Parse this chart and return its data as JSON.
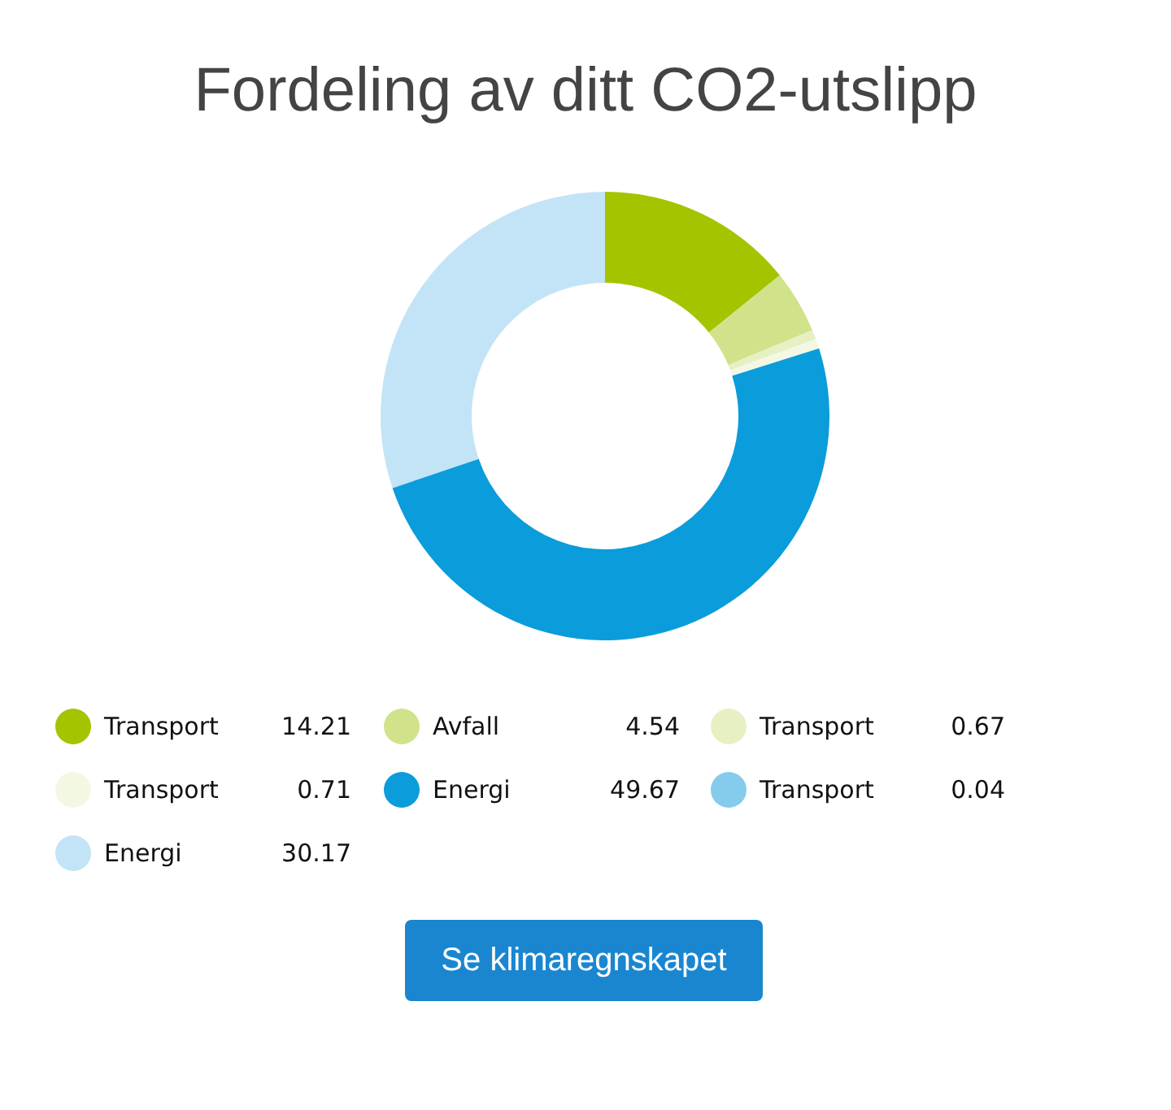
{
  "chart_data": {
    "type": "donut",
    "title": "Fordeling av ditt CO2-utslipp",
    "categories": [
      "Transport",
      "Avfall",
      "Transport",
      "Transport",
      "Energi",
      "Transport",
      "Energi"
    ],
    "values": [
      14.21,
      4.54,
      0.67,
      0.71,
      49.67,
      0.04,
      30.17
    ],
    "colors": [
      "#a4c400",
      "#d1e38a",
      "#e6f0c3",
      "#f3f8e3",
      "#0a9cdb",
      "#85cbec",
      "#c2e4f6"
    ],
    "data_labels": true,
    "legend": "bottom",
    "annotations": [
      "Se klimaregnskapet"
    ]
  }
}
